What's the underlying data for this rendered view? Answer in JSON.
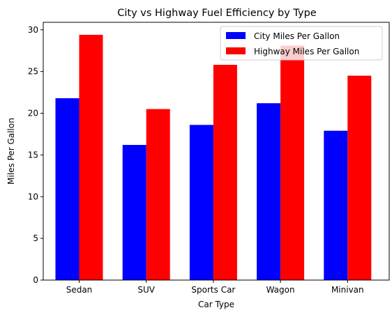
{
  "chart_data": {
    "type": "bar",
    "title": "City vs Highway Fuel Efficiency by Type",
    "xlabel": "Car Type",
    "ylabel": "Miles Per Gallon",
    "categories": [
      "Sedan",
      "SUV",
      "Sports Car",
      "Wagon",
      "Minivan"
    ],
    "series": [
      {
        "name": "City Miles Per Gallon",
        "color": "#0000ff",
        "values": [
          21.8,
          16.2,
          18.6,
          21.2,
          17.9
        ]
      },
      {
        "name": "Highway Miles Per Gallon",
        "color": "#ff0000",
        "values": [
          29.4,
          20.5,
          25.8,
          28.1,
          24.5
        ]
      }
    ],
    "ylim": [
      0,
      30.9
    ],
    "yticks": [
      0,
      5,
      10,
      15,
      20,
      25,
      30
    ],
    "legend_position": "top-right",
    "grid": false
  }
}
